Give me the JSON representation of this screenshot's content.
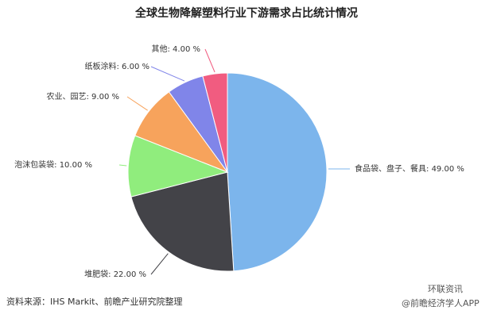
{
  "chart_data": {
    "type": "pie",
    "title": "全球生物降解塑料行业下游需求占比统计情况",
    "categories": [
      "食品袋、盘子、餐具",
      "堆肥袋",
      "泡沫包装袋",
      "农业、园艺",
      "纸板涂料",
      "其他"
    ],
    "values": [
      49,
      22,
      10,
      9,
      6,
      4
    ],
    "value_labels": [
      "49.00 %",
      "22.00 %",
      "10.00 %",
      "9.00 %",
      "6.00 %",
      "4.00 %"
    ],
    "label_separator": ": ",
    "colors": [
      "#7cb5ec",
      "#434348",
      "#90ed7d",
      "#f7a35c",
      "#8085e9",
      "#f15c80"
    ],
    "source": "资料来源：IHS Markit、前瞻产业研究院整理",
    "watermark": "环联资讯",
    "footer_note": "@前瞻经济学人APP"
  }
}
